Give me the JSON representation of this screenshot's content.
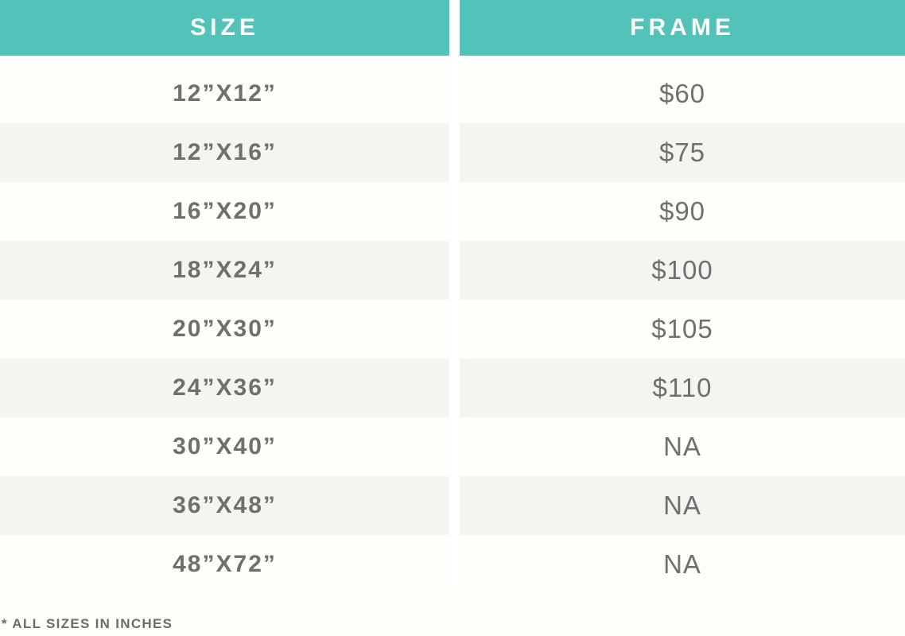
{
  "chart_data": {
    "type": "table",
    "columns": [
      "SIZE",
      "FRAME"
    ],
    "rows": [
      [
        "12”X12”",
        "$60"
      ],
      [
        "12”X16”",
        "$75"
      ],
      [
        "16”X20”",
        "$90"
      ],
      [
        "18”X24”",
        "$100"
      ],
      [
        "20”X30”",
        "$105"
      ],
      [
        "24”X36”",
        "$110"
      ],
      [
        "30”X40”",
        "NA"
      ],
      [
        "36”X48”",
        "NA"
      ],
      [
        "48”X72”",
        "NA"
      ]
    ],
    "footnote": "* ALL SIZES IN INCHES",
    "layout": "two-column striped pricing table, header row teal, alternating cream/gray rows"
  },
  "colors": {
    "header_bg": "#53c2b8",
    "header_text": "#ffffff",
    "row_odd_bg": "#fffef8",
    "row_even_bg": "#f4f4f1",
    "gap": "#ffffff",
    "body_text": "#6f6f6d"
  }
}
